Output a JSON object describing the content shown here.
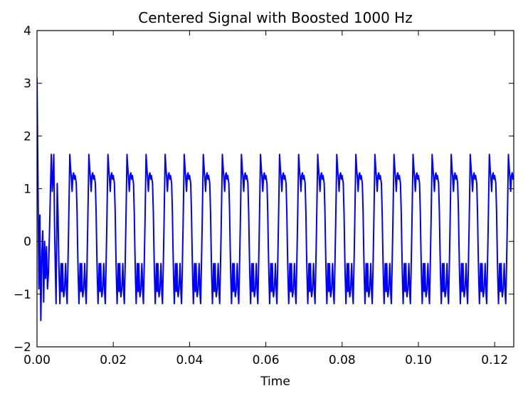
{
  "chart_data": {
    "type": "line",
    "title": "Centered Signal with Boosted 1000 Hz",
    "xlabel": "Time",
    "ylabel": "",
    "xlim": [
      0,
      0.125
    ],
    "ylim": [
      -2,
      4
    ],
    "grid": false,
    "legend": "none",
    "line_color": "#0000ff",
    "x_ticks": [
      0.0,
      0.02,
      0.04,
      0.06,
      0.08,
      0.1,
      0.12
    ],
    "x_tick_labels": [
      "0.00",
      "0.02",
      "0.04",
      "0.06",
      "0.08",
      "0.10",
      "0.12"
    ],
    "y_ticks": [
      -2,
      -1,
      0,
      1,
      2,
      3,
      4
    ],
    "y_tick_labels": [
      "−2",
      "−1",
      "0",
      "1",
      "2",
      "3",
      "4"
    ],
    "series": [
      {
        "period_s": 0.005,
        "x_cycle": [
          0,
          0.0003,
          0.0005,
          0.00065,
          0.0008,
          0.001,
          0.0012,
          0.0013,
          0.0015,
          0.0017,
          0.0019,
          0.002,
          0.00225,
          0.0025,
          0.00275,
          0.0029,
          0.0031,
          0.0033,
          0.0035,
          0.0036,
          0.0038,
          0.004,
          0.0042,
          0.0044,
          0.0046,
          0.0048,
          0.005
        ],
        "y_cycle": [
          1.25,
          1.1,
          0.55,
          -0.1,
          -0.65,
          -1.18,
          -0.7,
          -0.42,
          -0.95,
          -0.42,
          -0.95,
          -1.05,
          -0.9,
          -0.42,
          -1.0,
          -1.18,
          -0.5,
          0.3,
          1.2,
          1.65,
          1.4,
          1.2,
          0.95,
          1.25,
          1.3,
          1.18,
          1.25
        ],
        "x_start": [
          0,
          0.00025,
          0.0005,
          0.00075,
          0.001,
          0.00125,
          0.0015,
          0.00175,
          0.002,
          0.00225,
          0.0025,
          0.00275,
          0.003,
          0.00325,
          0.0035,
          0.00375,
          0.004,
          0.0042,
          0.0044,
          0.0046,
          0.0048,
          0.005
        ],
        "y_start": [
          3.1,
          1.2,
          -0.9,
          0.5,
          -1.5,
          -0.3,
          0.2,
          -1.15,
          0.0,
          -0.7,
          -0.1,
          -0.9,
          -0.6,
          0.1,
          0.9,
          1.65,
          0.95,
          1.2,
          1.65,
          0.3,
          -0.5,
          -1.18
        ]
      }
    ]
  }
}
